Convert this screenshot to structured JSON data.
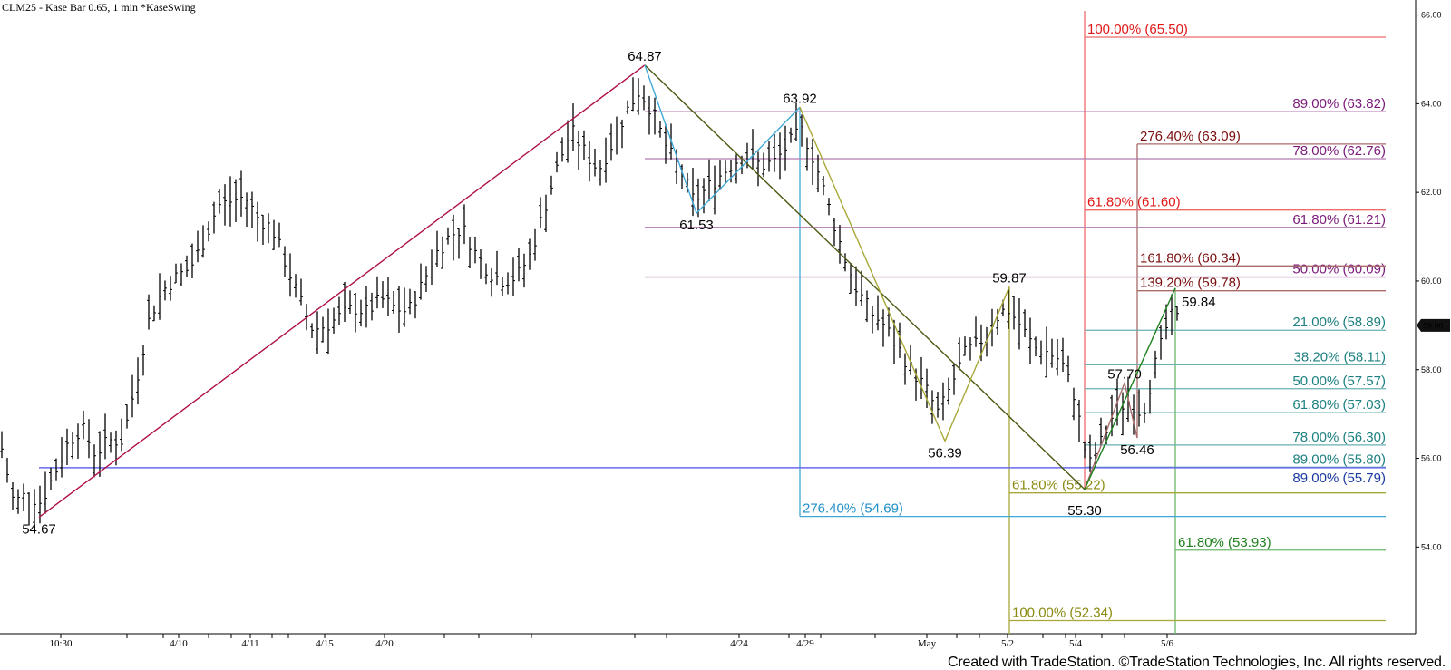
{
  "header": {
    "title": "CLM25 - Kase Bar 0.65, 1 min  *KaseSwing"
  },
  "footer": {
    "text": "Created with TradeStation. ©TradeStation Technologies, Inc. All rights reserved."
  },
  "chart_data": {
    "type": "ohlc-bar",
    "symbol": "CLM25",
    "y_axis": {
      "ticks": [
        "66.00",
        "64.00",
        "62.00",
        "60.00",
        "58.00",
        "56.00",
        "54.00"
      ],
      "range": [
        52.2,
        66.3
      ],
      "position": "right"
    },
    "x_axis": {
      "ticks": [
        "10:30",
        "4/10",
        "4/11",
        "4/15",
        "4/20",
        "4/24",
        "4/29",
        "May",
        "5/2",
        "5/4",
        "5/6"
      ]
    },
    "current_price": {
      "label": "59.00",
      "value": 59.0
    },
    "grid": false,
    "price_path": [
      56.4,
      55.0,
      55.2,
      55.0,
      55.65,
      56.35,
      56.7,
      56.1,
      56.4,
      56.4,
      57.7,
      59.2,
      59.8,
      60.1,
      60.3,
      60.9,
      61.7,
      61.8,
      61.9,
      61.4,
      61.2,
      60.4,
      59.6,
      58.9,
      59.0,
      59.2,
      59.4,
      59.3,
      59.6,
      59.4,
      59.3,
      59.9,
      60.6,
      61.0,
      61.2,
      60.6,
      60.2,
      60.0,
      60.1,
      60.6,
      61.6,
      62.6,
      63.4,
      62.9,
      62.5,
      63.1,
      63.8,
      64.3,
      63.8,
      63.0,
      62.5,
      61.8,
      62.1,
      62.4,
      62.7,
      62.8,
      62.6,
      62.7,
      63.1,
      63.4,
      62.6,
      61.6,
      60.6,
      59.8,
      59.3,
      59.0,
      58.5,
      58.0,
      57.6,
      57.0,
      57.7,
      58.4,
      58.6,
      59.1,
      59.4,
      59.0,
      58.5,
      58.4,
      58.2,
      57.4,
      55.8,
      56.4,
      57.1,
      57.3,
      57.0,
      58.2,
      59.2,
      59.1
    ],
    "swings": [
      {
        "label": "54.67",
        "value": 54.67
      },
      {
        "label": "64.87",
        "value": 64.87
      },
      {
        "label": "61.53",
        "value": 61.53
      },
      {
        "label": "63.92",
        "value": 63.92
      },
      {
        "label": "56.39",
        "value": 56.39
      },
      {
        "label": "59.87",
        "value": 59.87
      },
      {
        "label": "55.30",
        "value": 55.3
      },
      {
        "label": "57.70",
        "value": 57.7
      },
      {
        "label": "56.46",
        "value": 56.46
      },
      {
        "label": "59.84",
        "value": 59.84
      }
    ],
    "fib_levels": [
      {
        "group": "red",
        "label": "100.00% (65.50)",
        "value": 65.5
      },
      {
        "group": "red",
        "label": "61.80% (61.60)",
        "value": 61.6
      },
      {
        "group": "purple",
        "label": "89.00% (63.82)",
        "value": 63.82
      },
      {
        "group": "purple",
        "label": "78.00% (62.76)",
        "value": 62.76
      },
      {
        "group": "purple",
        "label": "61.80% (61.21)",
        "value": 61.21
      },
      {
        "group": "purple",
        "label": "50.00% (60.09)",
        "value": 60.09
      },
      {
        "group": "brown",
        "label": "276.40% (63.09)",
        "value": 63.09
      },
      {
        "group": "brown",
        "label": "161.80% (60.34)",
        "value": 60.34
      },
      {
        "group": "brown",
        "label": "139.20% (59.78)",
        "value": 59.78
      },
      {
        "group": "teal",
        "label": "21.00% (58.89)",
        "value": 58.89
      },
      {
        "group": "teal",
        "label": "38.20% (58.11)",
        "value": 58.11
      },
      {
        "group": "teal",
        "label": "50.00% (57.57)",
        "value": 57.57
      },
      {
        "group": "teal",
        "label": "61.80% (57.03)",
        "value": 57.03
      },
      {
        "group": "teal",
        "label": "78.00% (56.30)",
        "value": 56.3
      },
      {
        "group": "teal",
        "label": "89.00% (55.80)",
        "value": 55.8
      },
      {
        "group": "blue",
        "label": "89.00% (55.79)",
        "value": 55.79
      },
      {
        "group": "olive",
        "label": "61.80% (55.22)",
        "value": 55.22
      },
      {
        "group": "olive",
        "label": "100.00% (52.34)",
        "value": 52.34
      },
      {
        "group": "sky",
        "label": "276.40% (54.69)",
        "value": 54.69
      },
      {
        "group": "green",
        "label": "61.80% (53.93)",
        "value": 53.93
      }
    ],
    "colors": {
      "crimson": "#b01048",
      "darkolive": "#4b5a12",
      "sky": "#40a8d8",
      "olive": "#a8a838",
      "red": "#f06a6a",
      "redText": "#e01818",
      "brown": "#a86a6a",
      "brownText": "#7a0e0e",
      "purple": "#b07ab0",
      "purpleText": "#7a1a7a",
      "teal": "#6ab0b0",
      "tealText": "#1e8080",
      "blue": "#6a6af0",
      "blueText": "#1a3aa0",
      "green": "#6ab86a",
      "greenText": "#1e801e",
      "oliveText": "#8a8a10",
      "skyText": "#2090c8",
      "bars": "#000000"
    }
  }
}
